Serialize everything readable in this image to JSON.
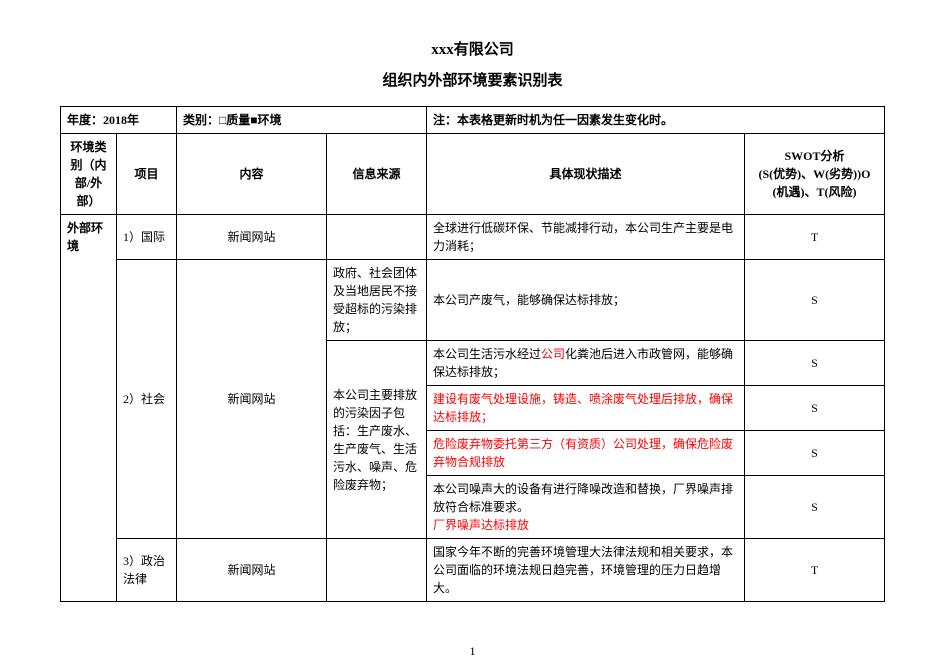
{
  "header": {
    "company": "xxx有限公司",
    "doc_title": "组织内外部环境要素识别表"
  },
  "meta_row": {
    "year_label": "年度：",
    "year_value": "2018年",
    "category_label": "类别：",
    "category_value": "□质量■环境",
    "note_label": "注：",
    "note_value": "本表格更新时机为任一因素发生变化时。"
  },
  "columns": {
    "category": "环境类别（内部/外部）",
    "item": "项目",
    "content": "内容",
    "source": "信息来源",
    "desc": "具体现状描述",
    "swot": "SWOT分析",
    "swot_sub": "(S(优势)、W(劣势))O(机遇)、T(风险)"
  },
  "category_label": "外部环境",
  "rows": {
    "r1": {
      "item": "1）国际",
      "content": "新闻网站",
      "source": "",
      "desc": "全球进行低碳环保、节能减排行动，本公司生产主要是电力消耗；",
      "swot": "T"
    },
    "r2": {
      "item": "2）社会",
      "content": "新闻网站",
      "source1": "政府、社会团体及当地居民不接受超标的污染排放；",
      "source2": "本公司主要排放的污染因子包括：生产废水、生产废气、生活污水、噪声、危险废弃物；",
      "d1": "本公司产废气，能够确保达标排放；",
      "d2_a": "本公司生活污水经过",
      "d2_red": "公司",
      "d2_b": "化粪池后进入市政管网，能够确保达标排放；",
      "d3": "建设有废气处理设施，铸造、喷涂废气处理后排放，确保达标排放；",
      "d4": "危险废弃物委托第三方（有资质）公司处理，确保危险废弃物合规排放",
      "d5_a": "本公司噪声大的设备有进行降噪改造和替换，厂界噪声排放符合标准要求。",
      "d5_b": "厂界噪声达标排放",
      "s1": "S",
      "s2": "S",
      "s3": "S",
      "s4": "S",
      "s5": "S"
    },
    "r3": {
      "item": "3）政治法律",
      "content": "新闻网站",
      "desc": "国家今年不断的完善环境管理大法律法规和相关要求，本公司面临的环境法规日趋完善，环境管理的压力日趋增大。",
      "swot": "T"
    }
  },
  "page_number": "1"
}
